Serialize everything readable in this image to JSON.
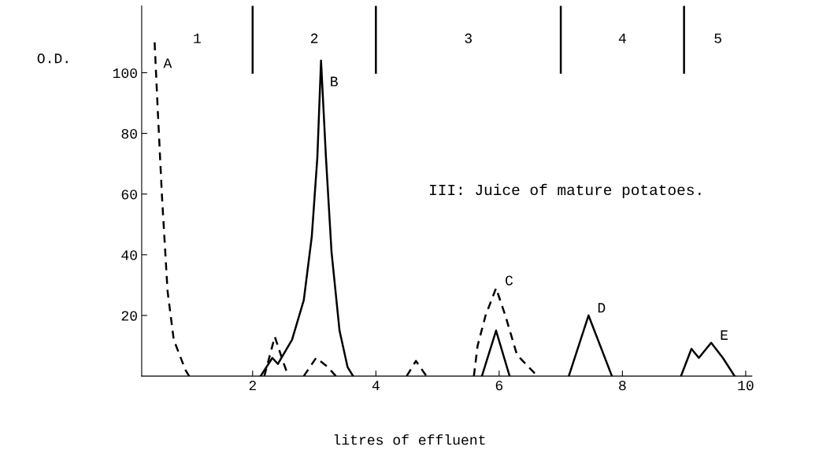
{
  "chart_data": {
    "type": "line",
    "ylabel": "O.D.",
    "xlabel": "litres of effluent",
    "xlim": [
      0.2,
      10.1
    ],
    "ylim": [
      0,
      122
    ],
    "xticks": [
      2,
      4,
      6,
      8,
      10
    ],
    "yticks": [
      20,
      40,
      60,
      80,
      100
    ],
    "grid": false,
    "legend": false,
    "marker": "none",
    "series": [
      {
        "name": "A",
        "color": "#000000",
        "line_style": "dashed",
        "x": [
          0.41,
          0.46,
          0.53,
          0.62,
          0.72,
          0.91,
          0.97
        ],
        "values": [
          110,
          88,
          59,
          28,
          12,
          2,
          0
        ]
      },
      {
        "color": "#000000",
        "line_style": "dashed",
        "x": [
          2.19,
          2.36,
          2.49,
          2.58,
          null,
          2.83,
          3.03,
          3.22,
          3.35,
          null,
          4.5,
          4.65,
          4.82
        ],
        "values": [
          0,
          13,
          5,
          0,
          null,
          0,
          6,
          3,
          0,
          null,
          0,
          5,
          0
        ]
      },
      {
        "name": "C",
        "color": "#000000",
        "line_style": "dashed",
        "x": [
          5.59,
          5.65,
          5.78,
          5.95,
          6.1,
          6.29,
          6.62
        ],
        "values": [
          0,
          10,
          20,
          29,
          20,
          7,
          0
        ]
      },
      {
        "name": "B",
        "color": "#000000",
        "line_style": "solid",
        "x": [
          2.13,
          2.32,
          2.41,
          2.64,
          2.83,
          2.96,
          3.05,
          3.11,
          3.19,
          3.28,
          3.41,
          3.54,
          3.63
        ],
        "values": [
          0,
          6,
          4,
          12,
          25,
          46,
          72,
          104,
          72,
          41,
          15,
          3,
          0
        ]
      },
      {
        "color": "#000000",
        "line_style": "solid",
        "x": [
          5.72,
          5.95,
          6.17
        ],
        "values": [
          0,
          15,
          0
        ]
      },
      {
        "name": "D",
        "color": "#000000",
        "line_style": "solid",
        "x": [
          7.13,
          7.45,
          7.83
        ],
        "values": [
          0,
          20,
          0
        ]
      },
      {
        "name": "E",
        "color": "#000000",
        "line_style": "solid",
        "x": [
          8.95,
          9.12,
          9.24,
          9.44,
          9.63,
          9.82
        ],
        "values": [
          0,
          9,
          6,
          11,
          6,
          0
        ]
      }
    ],
    "ref_lines": [
      {
        "axis": "x",
        "value": 2,
        "color": "#000000"
      },
      {
        "axis": "x",
        "value": 4,
        "color": "#000000"
      },
      {
        "axis": "x",
        "value": 7,
        "color": "#000000"
      },
      {
        "axis": "x",
        "value": 9,
        "color": "#000000"
      }
    ],
    "annotations": [
      "III: Juice of mature potatoes.",
      "1",
      "2",
      "3",
      "4",
      "5"
    ]
  }
}
